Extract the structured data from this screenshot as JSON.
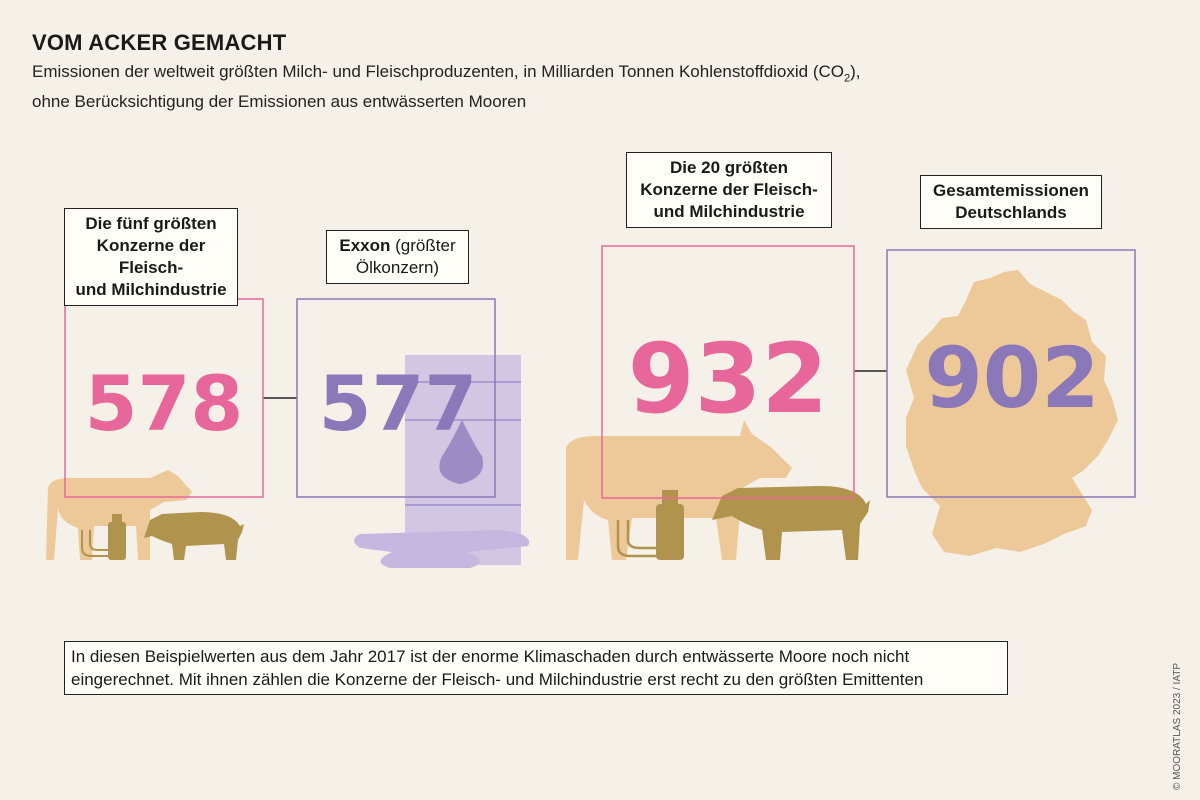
{
  "header": {
    "title": "VOM ACKER GEMACHT",
    "subtitle_line1_pre": "Emissionen der weltweit größten Milch- und Fleischproduzenten, in Milliarden Tonnen Kohlenstoffdioxid (CO",
    "subtitle_sub": "2",
    "subtitle_line1_post": "),",
    "subtitle_line2": "ohne Berücksichtigung der Emissionen aus entwässerten Mooren"
  },
  "labels": {
    "top5_l1": "Die fünf größten",
    "top5_l2": "Konzerne der Fleisch-",
    "top5_l3": "und Milchindustrie",
    "exxon_bold": "Exxon",
    "exxon_rest": " (größter",
    "exxon_l2": "Ölkonzern)",
    "top20_l1": "Die 20 größten",
    "top20_l2": "Konzerne der Fleisch-",
    "top20_l3": "und Milchindustrie",
    "de_l1": "Gesamtemissionen",
    "de_l2": "Deutschlands"
  },
  "chart_data": {
    "type": "table",
    "title": "VOM ACKER GEMACHT",
    "unit": "Milliarden Tonnen Kohlenstoffdioxid (CO2)",
    "items": [
      {
        "label": "Die fünf größten Konzerne der Fleisch- und Milchindustrie",
        "value": "578"
      },
      {
        "label": "Exxon (größter Ölkonzern)",
        "value": "577"
      },
      {
        "label": "Die 20 größten Konzerne der Fleisch- und Milchindustrie",
        "value": "932"
      },
      {
        "label": "Gesamtemissionen Deutschlands",
        "value": "902"
      }
    ]
  },
  "colors": {
    "pink": "#e8679a",
    "purple": "#8a78b8",
    "tan": "#edc99a",
    "olive": "#b0934d",
    "oil": "#c4b8e0"
  },
  "footnote": {
    "line1": "In diesen Beispielwerten aus dem Jahr 2017 ist der enorme Klimaschaden durch entwässerte Moore noch nicht",
    "line2": "eingerechnet. Mit ihnen zählen die Konzerne der Fleisch- und Milchindustrie erst recht zu den größten Emittenten"
  },
  "credit": "© MOORATLAS 2023 / IATP"
}
